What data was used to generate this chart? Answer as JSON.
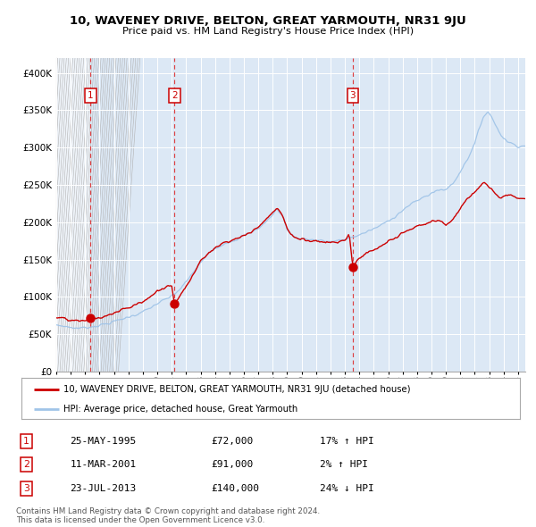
{
  "title": "10, WAVENEY DRIVE, BELTON, GREAT YARMOUTH, NR31 9JU",
  "subtitle": "Price paid vs. HM Land Registry's House Price Index (HPI)",
  "legend_line1": "10, WAVENEY DRIVE, BELTON, GREAT YARMOUTH, NR31 9JU (detached house)",
  "legend_line2": "HPI: Average price, detached house, Great Yarmouth",
  "transactions": [
    {
      "num": 1,
      "date": "25-MAY-1995",
      "price": 72000,
      "hpi_pct": "17% ↑ HPI",
      "year": 1995.38
    },
    {
      "num": 2,
      "date": "11-MAR-2001",
      "price": 91000,
      "hpi_pct": "2% ↑ HPI",
      "year": 2001.19
    },
    {
      "num": 3,
      "date": "23-JUL-2013",
      "price": 140000,
      "hpi_pct": "24% ↓ HPI",
      "year": 2013.55
    }
  ],
  "copyright": "Contains HM Land Registry data © Crown copyright and database right 2024.\nThis data is licensed under the Open Government Licence v3.0.",
  "hpi_color": "#a0c4e8",
  "price_color": "#cc0000",
  "dot_color": "#cc0000",
  "background_color": "#dce8f5",
  "ylim": [
    0,
    420000
  ],
  "yticks": [
    0,
    50000,
    100000,
    150000,
    200000,
    250000,
    300000,
    350000,
    400000
  ],
  "xmin": 1993.0,
  "xmax": 2025.5
}
